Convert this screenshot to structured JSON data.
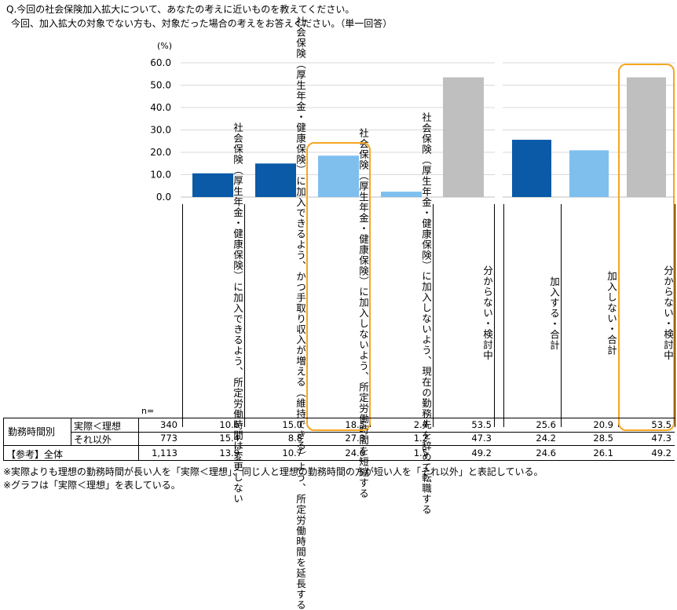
{
  "question": {
    "line1": "Q.今回の社会保険加入拡大について、あなたの考えに近いものを教えてください。",
    "line2": "今回、加入拡大の対象でない方も、対象だった場合の考えをお答えください。（単一回答）"
  },
  "chart_data": [
    {
      "type": "bar",
      "ylabel": "(%)",
      "ylim": [
        0,
        60
      ],
      "yticks": [
        "60.0",
        "50.0",
        "40.0",
        "30.0",
        "20.0",
        "10.0",
        "0.0"
      ],
      "categories": [
        "社会保険（厚生年金・健康保険）に加入できるよう、所定労働時間は変更しない",
        "社会保険（厚生年金・健康保険）に加入できるよう、かつ手取り収入が増える（維持できる）よう、所定労働時間を延長する",
        "社会保険（厚生年金・健康保険）に加入しないよう、所定労働時間を短縮する",
        "社会保険（厚生年金・健康保険）に加入しないよう、現在の勤務先を辞めて転職する",
        "分からない・検討中"
      ],
      "values": [
        10.6,
        15.0,
        18.5,
        2.4,
        53.5
      ],
      "colors": [
        "#0a5aa8",
        "#0a5aa8",
        "#7fbfee",
        "#7fbfee",
        "#bfbfbf"
      ]
    },
    {
      "type": "bar",
      "ylim": [
        0,
        60
      ],
      "categories": [
        "加入する・合計",
        "加入しない・合計",
        "分からない・検討中"
      ],
      "values": [
        25.6,
        20.9,
        53.5
      ],
      "colors": [
        "#0a5aa8",
        "#7fbfee",
        "#bfbfbf"
      ]
    }
  ],
  "cat_labels": [
    {
      "col1": "社会保険（厚生年金・健康保険）",
      "col2": "に加入できるよう、所定労働時間",
      "col3": "は変更しない"
    },
    {
      "col1": "社会保険（厚生年金・健康保険）",
      "col2": "に加入できるよう、かつ手取り収",
      "col3": "入が増える（維持できる）よう、",
      "col4": "所定労働時間を延長する"
    },
    {
      "col1": "社会保険（厚生年金・健康保険）",
      "col2": "に加入しないよう、所定労働時間",
      "col3": "を短縮する"
    },
    {
      "col1": "社会保険（厚生年金・健康保険）",
      "col2": "に加入しないよう、現在の勤務先",
      "col3": "を辞めて転職する"
    },
    {
      "col1": "分からない・検討中"
    },
    {
      "col1": "加入する・合計"
    },
    {
      "col1": "加入しない・合計"
    },
    {
      "col1": "分からない・検討中"
    }
  ],
  "table": {
    "n_label": "n=",
    "group_label": "勤務時間別",
    "rows": [
      {
        "label": "実際＜理想",
        "n": "340",
        "vals": [
          "10.6",
          "15.0",
          "18.5",
          "2.4",
          "53.5"
        ],
        "sum": [
          "25.6",
          "20.9",
          "53.5"
        ]
      },
      {
        "label": "それ以外",
        "n": "773",
        "vals": [
          "15.4",
          "8.8",
          "27.3",
          "1.2",
          "47.3"
        ],
        "sum": [
          "24.2",
          "28.5",
          "47.3"
        ]
      },
      {
        "label": "【参考】全体",
        "n": "1,113",
        "vals": [
          "13.9",
          "10.7",
          "24.6",
          "1.5",
          "49.2"
        ],
        "sum": [
          "24.6",
          "26.1",
          "49.2"
        ]
      }
    ]
  },
  "notes": {
    "note1": "※実際よりも理想の勤務時間が長い人を「実際＜理想」、同じ人と理想の勤務時間の方が短い人を「それ以外」と表記している。",
    "note2": "※グラフは「実際＜理想」を表している。"
  }
}
